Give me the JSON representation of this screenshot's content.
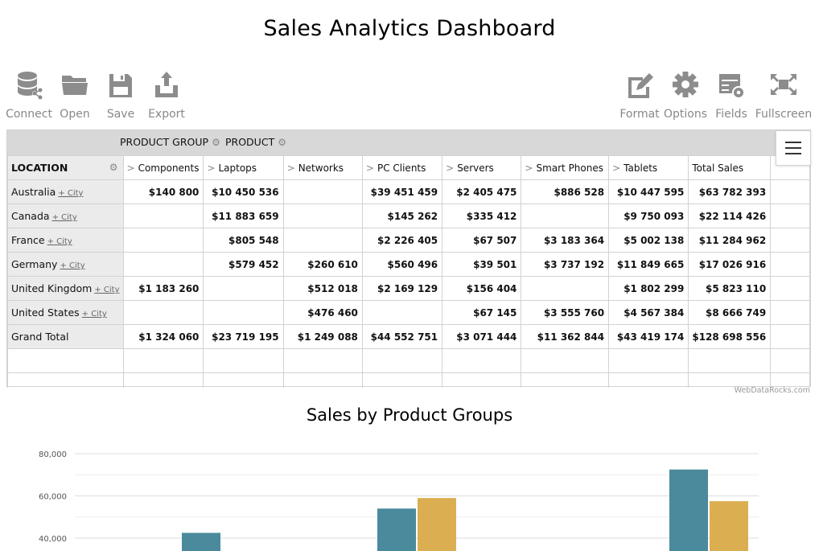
{
  "page": {
    "title": "Sales Analytics Dashboard",
    "credit": "WebDataRocks.com"
  },
  "toolbar": {
    "left": [
      {
        "label": "Connect",
        "icon": "database-icon"
      },
      {
        "label": "Open",
        "icon": "folder-icon"
      },
      {
        "label": "Save",
        "icon": "floppy-disk-icon"
      },
      {
        "label": "Export",
        "icon": "export-icon"
      }
    ],
    "right": [
      {
        "label": "Format",
        "icon": "format-pencil-icon"
      },
      {
        "label": "Options",
        "icon": "gear-icon"
      },
      {
        "label": "Fields",
        "icon": "fields-icon"
      },
      {
        "label": "Fullscreen",
        "icon": "fullscreen-icon"
      }
    ]
  },
  "pivot": {
    "column_headers": [
      "PRODUCT GROUP",
      "PRODUCT"
    ],
    "row_header": "LOCATION",
    "columns": [
      "Components",
      "Laptops",
      "Networks",
      "PC Clients",
      "Servers",
      "Smart Phones",
      "Tablets",
      "Total Sales"
    ],
    "drill_label": "+ City",
    "rows": [
      {
        "label": "Australia",
        "values": [
          "$140 800",
          "$10 450 536",
          "",
          "$39 451 459",
          "$2 405 475",
          "$886 528",
          "$10 447 595",
          "$63 782 393"
        ]
      },
      {
        "label": "Canada",
        "values": [
          "",
          "$11 883 659",
          "",
          "$145 262",
          "$335 412",
          "",
          "$9 750 093",
          "$22 114 426"
        ]
      },
      {
        "label": "France",
        "values": [
          "",
          "$805 548",
          "",
          "$2 226 405",
          "$67 507",
          "$3 183 364",
          "$5 002 138",
          "$11 284 962"
        ]
      },
      {
        "label": "Germany",
        "values": [
          "",
          "$579 452",
          "$260 610",
          "$560 496",
          "$39 501",
          "$3 737 192",
          "$11 849 665",
          "$17 026 916"
        ]
      },
      {
        "label": "United Kingdom",
        "values": [
          "$1 183 260",
          "",
          "$512 018",
          "$2 169 129",
          "$156 404",
          "",
          "$1 802 299",
          "$5 823 110"
        ]
      },
      {
        "label": "United States",
        "values": [
          "",
          "",
          "$476 460",
          "",
          "$67 145",
          "$3 555 760",
          "$4 567 384",
          "$8 666 749"
        ]
      }
    ],
    "grand_total": {
      "label": "Grand Total",
      "values": [
        "$1 324 060",
        "$23 719 195",
        "$1 249 088",
        "$44 552 751",
        "$3 071 444",
        "$11 362 844",
        "$43 419 174",
        "$128 698 556"
      ]
    }
  },
  "chart": {
    "title": "Sales by Product Groups"
  },
  "chart_data": {
    "type": "bar",
    "title": "Sales by Product Groups",
    "ytick_labels": [
      "80,000",
      "60,000",
      "40,000"
    ],
    "yticks": [
      80000,
      60000,
      40000
    ],
    "ylim": [
      33000,
      84000
    ],
    "grid": true,
    "series": [
      {
        "color": "#4a8a9c",
        "values": [
          42500,
          54000,
          72500
        ]
      },
      {
        "color": "#dcae52",
        "values": [
          null,
          59000,
          57500
        ]
      }
    ],
    "group_count": 3
  }
}
